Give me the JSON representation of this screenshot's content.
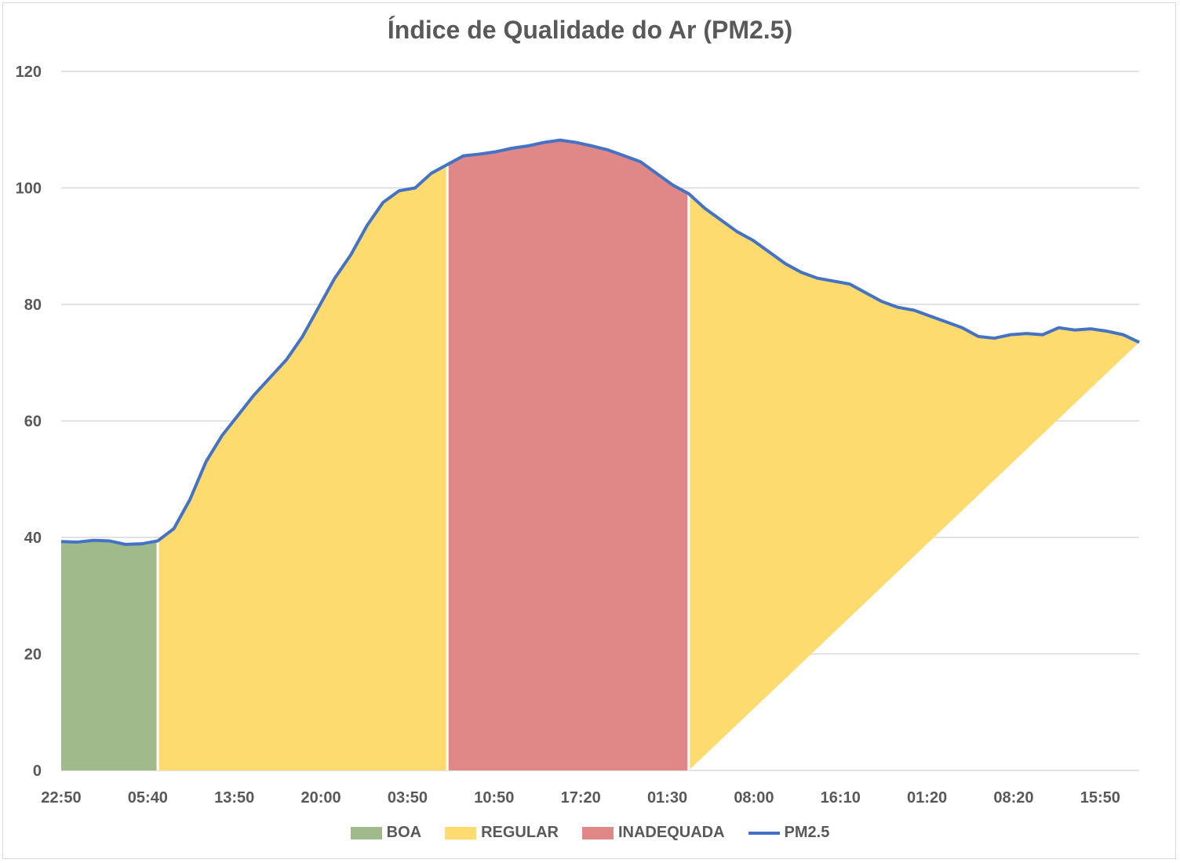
{
  "chart_data": {
    "type": "area",
    "title": "Índice de Qualidade do Ar (PM2.5)",
    "xlabel": "",
    "ylabel": "",
    "ylim": [
      0,
      120
    ],
    "yticks": [
      0,
      20,
      40,
      60,
      80,
      100,
      120
    ],
    "xtick_labels": [
      "22:50",
      "05:40",
      "13:50",
      "20:00",
      "03:50",
      "10:50",
      "17:20",
      "01:30",
      "08:00",
      "16:10",
      "01:20",
      "08:20",
      "15:50"
    ],
    "grid": true,
    "legend_position": "bottom",
    "bands": [
      {
        "name": "BOA",
        "color": "#a1ba8c",
        "from_index": 0,
        "to_index": 6
      },
      {
        "name": "REGULAR",
        "color": "#fddb6e",
        "from_index": 6,
        "to_index": 24
      },
      {
        "name": "INADEQUADA",
        "color": "#e08787",
        "from_index": 24,
        "to_index": 39
      },
      {
        "name": "REGULAR",
        "color": "#fddb6e",
        "from_index": 39,
        "to_index": 68
      }
    ],
    "series": [
      {
        "name": "PM2.5",
        "color": "#4472c4",
        "values": [
          39.3,
          39.2,
          39.5,
          39.4,
          38.8,
          38.9,
          39.4,
          41.5,
          46.5,
          53.0,
          57.5,
          61.0,
          64.5,
          67.5,
          70.5,
          74.5,
          79.5,
          84.5,
          88.5,
          93.5,
          97.5,
          99.5,
          100.0,
          102.5,
          104.0,
          105.5,
          105.8,
          106.2,
          106.8,
          107.2,
          107.8,
          108.2,
          107.8,
          107.2,
          106.5,
          105.5,
          104.5,
          102.5,
          100.5,
          99.0,
          96.5,
          94.5,
          92.5,
          91.0,
          89.0,
          87.0,
          85.5,
          84.5,
          84.0,
          83.5,
          82.0,
          80.5,
          79.5,
          79.0,
          78.0,
          77.0,
          76.0,
          74.5,
          74.2,
          74.8,
          75.0,
          74.8,
          76.0,
          75.6,
          75.8,
          75.4,
          74.8,
          73.5
        ]
      }
    ]
  },
  "legend": {
    "boa": "BOA",
    "regular": "REGULAR",
    "inadequada": "INADEQUADA",
    "pm25": "PM2.5"
  }
}
